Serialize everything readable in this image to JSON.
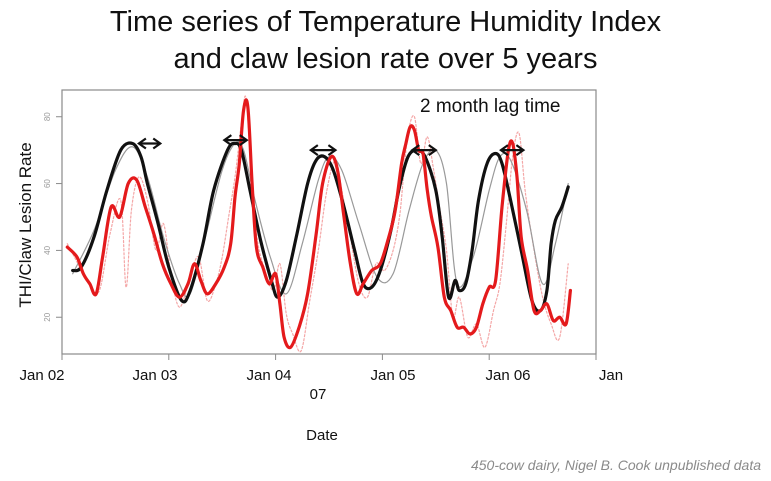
{
  "chart_data": {
    "type": "line",
    "title_line1": "Time series of Temperature Humidity Index",
    "title_line2": "and claw lesion rate over 5 years",
    "xlabel": "Date",
    "ylabel": "THI/Claw Lesion Rate",
    "annotation": "2 month lag time",
    "credit": "450-cow dairy, Nigel B. Cook unpublished data",
    "x_tick_labels": [
      "Jan 02",
      "Jan 03",
      "Jan 04",
      "Jan 05",
      "Jan 06",
      "Jan"
    ],
    "x_tick_extra": "07",
    "x_tick_values": [
      2002.0,
      2003.0,
      2004.0,
      2005.0,
      2006.0,
      2007.0
    ],
    "y_ticks": [
      20,
      40,
      60,
      80
    ],
    "ylim": [
      9,
      88
    ],
    "xlim": [
      2002.0,
      2007.0
    ],
    "grid": false,
    "lag_arrows": [
      {
        "x1": 2002.72,
        "x2": 2002.92,
        "y": 72
      },
      {
        "x1": 2003.52,
        "x2": 2003.73,
        "y": 73
      },
      {
        "x1": 2004.33,
        "x2": 2004.56,
        "y": 70
      },
      {
        "x1": 2005.28,
        "x2": 2005.5,
        "y": 70
      },
      {
        "x1": 2006.11,
        "x2": 2006.32,
        "y": 70
      }
    ],
    "series": [
      {
        "color": "#111111",
        "style": "thick-smoothed",
        "x": [
          2002.1,
          2002.18,
          2002.3,
          2002.42,
          2002.55,
          2002.66,
          2002.74,
          2002.8,
          2002.9,
          2003.0,
          2003.12,
          2003.2,
          2003.32,
          2003.42,
          2003.55,
          2003.62,
          2003.68,
          2003.76,
          2003.86,
          2003.96,
          2004.02,
          2004.1,
          2004.2,
          2004.3,
          2004.38,
          2004.46,
          2004.54,
          2004.64,
          2004.74,
          2004.82,
          2004.9,
          2004.98,
          2005.08,
          2005.16,
          2005.24,
          2005.32,
          2005.4,
          2005.5,
          2005.56,
          2005.62,
          2005.68,
          2005.72,
          2005.78,
          2005.84,
          2005.9,
          2005.98,
          2006.06,
          2006.12,
          2006.2,
          2006.3,
          2006.4,
          2006.48,
          2006.54,
          2006.58,
          2006.62,
          2006.68,
          2006.74
        ],
        "values": [
          34,
          35,
          44,
          58,
          70,
          72,
          68,
          60,
          48,
          35,
          25,
          28,
          42,
          58,
          70,
          72,
          70,
          58,
          43,
          31,
          26,
          31,
          45,
          60,
          67,
          68,
          64,
          53,
          40,
          30,
          29,
          34,
          46,
          59,
          68,
          70,
          68,
          58,
          44,
          26,
          31,
          28,
          30,
          40,
          55,
          66,
          69,
          66,
          55,
          40,
          25,
          22,
          28,
          42,
          49,
          53,
          59
        ]
      },
      {
        "color": "#999999",
        "style": "thin",
        "x": [
          2002.1,
          2002.3,
          2002.5,
          2002.66,
          2002.8,
          2002.95,
          2003.1,
          2003.2,
          2003.35,
          2003.5,
          2003.62,
          2003.7,
          2003.8,
          2003.95,
          2004.1,
          2004.25,
          2004.4,
          2004.5,
          2004.62,
          2004.78,
          2004.95,
          2005.1,
          2005.25,
          2005.38,
          2005.5,
          2005.6,
          2005.7,
          2005.85,
          2006.0,
          2006.1,
          2006.2,
          2006.35,
          2006.5,
          2006.62,
          2006.74
        ],
        "values": [
          33,
          46,
          64,
          71,
          62,
          44,
          30,
          27,
          45,
          64,
          72,
          70,
          56,
          38,
          27,
          42,
          61,
          68,
          64,
          48,
          32,
          33,
          52,
          66,
          70,
          60,
          30,
          38,
          58,
          68,
          67,
          52,
          30,
          42,
          60
        ]
      },
      {
        "color": "#e41a1c",
        "style": "thick-smoothed",
        "x": [
          2002.05,
          2002.14,
          2002.2,
          2002.26,
          2002.32,
          2002.38,
          2002.46,
          2002.54,
          2002.62,
          2002.7,
          2002.78,
          2002.86,
          2002.94,
          2003.02,
          2003.1,
          2003.18,
          2003.24,
          2003.3,
          2003.36,
          2003.44,
          2003.52,
          2003.58,
          2003.62,
          2003.66,
          2003.7,
          2003.74,
          2003.78,
          2003.82,
          2003.88,
          2003.94,
          2004.0,
          2004.04,
          2004.08,
          2004.14,
          2004.22,
          2004.3,
          2004.38,
          2004.44,
          2004.52,
          2004.58,
          2004.64,
          2004.7,
          2004.76,
          2004.82,
          2004.9,
          2004.98,
          2005.06,
          2005.12,
          2005.18,
          2005.22,
          2005.26,
          2005.3,
          2005.34,
          2005.38,
          2005.42,
          2005.46,
          2005.52,
          2005.58,
          2005.64,
          2005.7,
          2005.76,
          2005.82,
          2005.88,
          2005.94,
          2006.0,
          2006.06,
          2006.12,
          2006.18,
          2006.22,
          2006.26,
          2006.3,
          2006.36,
          2006.42,
          2006.48,
          2006.54,
          2006.6,
          2006.66,
          2006.72,
          2006.76
        ],
        "values": [
          41,
          38,
          33,
          30,
          27,
          38,
          53,
          50,
          60,
          61,
          53,
          45,
          36,
          30,
          26,
          30,
          36,
          31,
          27,
          30,
          35,
          42,
          56,
          66,
          82,
          83,
          60,
          41,
          35,
          30,
          33,
          24,
          14,
          11,
          17,
          27,
          45,
          60,
          68,
          64,
          50,
          36,
          27,
          30,
          34,
          36,
          44,
          52,
          66,
          72,
          77,
          76,
          70,
          69,
          58,
          50,
          41,
          26,
          22,
          17,
          17,
          15,
          17,
          24,
          29,
          31,
          53,
          70,
          72,
          62,
          44,
          34,
          22,
          22,
          24,
          19,
          20,
          18,
          28
        ]
      },
      {
        "color": "#f4a6a6",
        "style": "dotted",
        "x": [
          2002.05,
          2002.15,
          2002.25,
          2002.35,
          2002.45,
          2002.55,
          2002.6,
          2002.65,
          2002.72,
          2002.8,
          2002.88,
          2002.95,
          2003.02,
          2003.1,
          2003.2,
          2003.28,
          2003.36,
          2003.44,
          2003.5,
          2003.56,
          2003.62,
          2003.68,
          2003.72,
          2003.76,
          2003.82,
          2003.9,
          2003.98,
          2004.04,
          2004.1,
          2004.16,
          2004.24,
          2004.32,
          2004.4,
          2004.48,
          2004.56,
          2004.62,
          2004.7,
          2004.78,
          2004.86,
          2004.94,
          2005.02,
          2005.1,
          2005.16,
          2005.2,
          2005.24,
          2005.3,
          2005.36,
          2005.42,
          2005.48,
          2005.54,
          2005.6,
          2005.66,
          2005.72,
          2005.8,
          2005.88,
          2005.96,
          2006.04,
          2006.1,
          2006.16,
          2006.22,
          2006.28,
          2006.34,
          2006.42,
          2006.5,
          2006.58,
          2006.66,
          2006.74
        ],
        "values": [
          42,
          36,
          30,
          28,
          45,
          55,
          29,
          52,
          62,
          55,
          40,
          48,
          33,
          23,
          32,
          38,
          25,
          30,
          38,
          50,
          62,
          78,
          86,
          70,
          45,
          34,
          28,
          36,
          21,
          15,
          10,
          25,
          40,
          58,
          67,
          58,
          44,
          30,
          26,
          36,
          34,
          40,
          50,
          63,
          75,
          80,
          66,
          74,
          64,
          52,
          40,
          20,
          26,
          14,
          18,
          11,
          22,
          30,
          48,
          68,
          75,
          57,
          40,
          26,
          18,
          14,
          36
        ]
      }
    ]
  }
}
